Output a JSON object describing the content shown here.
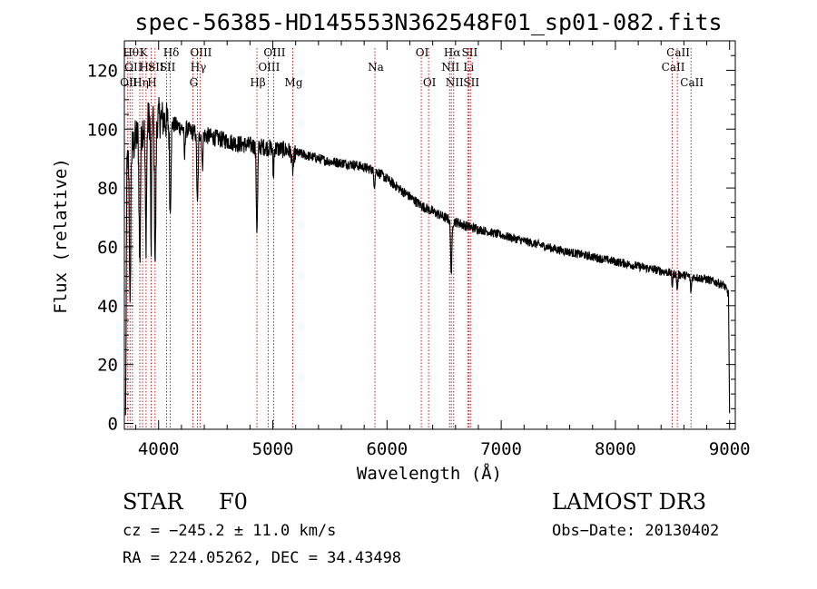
{
  "chart_data": {
    "type": "line",
    "title": "spec-56385-HD145553N362548F01_sp01-082.fits",
    "xlabel": "Wavelength (Å)",
    "ylabel": "Flux (relative)",
    "xlim": [
      3700,
      9050
    ],
    "ylim": [
      -2,
      130
    ],
    "xticks": [
      4000,
      5000,
      6000,
      7000,
      8000,
      9000
    ],
    "yticks": [
      0,
      20,
      40,
      60,
      80,
      100,
      120
    ],
    "continuum": [
      {
        "x": 3700,
        "y": 85
      },
      {
        "x": 3800,
        "y": 97
      },
      {
        "x": 3900,
        "y": 103
      },
      {
        "x": 4000,
        "y": 104
      },
      {
        "x": 4100,
        "y": 102
      },
      {
        "x": 4300,
        "y": 99
      },
      {
        "x": 4500,
        "y": 97
      },
      {
        "x": 4700,
        "y": 95
      },
      {
        "x": 4900,
        "y": 94
      },
      {
        "x": 5100,
        "y": 93
      },
      {
        "x": 5300,
        "y": 91
      },
      {
        "x": 5500,
        "y": 89
      },
      {
        "x": 5700,
        "y": 88
      },
      {
        "x": 5900,
        "y": 86
      },
      {
        "x": 6100,
        "y": 80
      },
      {
        "x": 6300,
        "y": 74
      },
      {
        "x": 6500,
        "y": 70
      },
      {
        "x": 6700,
        "y": 67
      },
      {
        "x": 7000,
        "y": 64
      },
      {
        "x": 7500,
        "y": 59
      },
      {
        "x": 8000,
        "y": 55
      },
      {
        "x": 8500,
        "y": 51
      },
      {
        "x": 8800,
        "y": 49
      },
      {
        "x": 8950,
        "y": 47
      },
      {
        "x": 8990,
        "y": 44
      },
      {
        "x": 9000,
        "y": 3
      }
    ],
    "absorption": [
      {
        "x": 3712,
        "depth": 80,
        "width": 4
      },
      {
        "x": 3750,
        "depth": 55,
        "width": 5
      },
      {
        "x": 3835,
        "depth": 45,
        "width": 6
      },
      {
        "x": 3889,
        "depth": 40,
        "width": 6
      },
      {
        "x": 3934,
        "depth": 45,
        "width": 4
      },
      {
        "x": 3970,
        "depth": 48,
        "width": 6
      },
      {
        "x": 4102,
        "depth": 30,
        "width": 6
      },
      {
        "x": 4227,
        "depth": 10,
        "width": 4
      },
      {
        "x": 4340,
        "depth": 25,
        "width": 6
      },
      {
        "x": 4383,
        "depth": 12,
        "width": 4
      },
      {
        "x": 4861,
        "depth": 28,
        "width": 6
      },
      {
        "x": 5005,
        "depth": 10,
        "width": 4
      },
      {
        "x": 5175,
        "depth": 6,
        "width": 8
      },
      {
        "x": 5890,
        "depth": 5,
        "width": 6
      },
      {
        "x": 6563,
        "depth": 18,
        "width": 6
      },
      {
        "x": 8498,
        "depth": 4,
        "width": 5
      },
      {
        "x": 8542,
        "depth": 5,
        "width": 5
      },
      {
        "x": 8662,
        "depth": 5,
        "width": 5
      }
    ],
    "line_markers": [
      {
        "x": 3730,
        "label": "OII",
        "row": 3
      },
      {
        "x": 3750,
        "label": "Hθ",
        "row": 1
      },
      {
        "x": 3770,
        "label": "OII",
        "row": 2
      },
      {
        "x": 3835,
        "label": "Hη",
        "row": 3
      },
      {
        "x": 3860,
        "label": "K",
        "row": 1
      },
      {
        "x": 3890,
        "label": "Hε",
        "row": 2
      },
      {
        "x": 3934,
        "label": "H",
        "row": 3
      },
      {
        "x": 3969,
        "label": "SII",
        "row": 2
      },
      {
        "x": 4070,
        "label": "SII",
        "row": 2
      },
      {
        "x": 4102,
        "label": "Hδ",
        "row": 1
      },
      {
        "x": 4300,
        "label": "G",
        "row": 3
      },
      {
        "x": 4340,
        "label": "Hγ",
        "row": 2
      },
      {
        "x": 4363,
        "label": "OIII",
        "row": 1
      },
      {
        "x": 4861,
        "label": "Hβ",
        "row": 3
      },
      {
        "x": 4959,
        "label": "OIII",
        "row": 2
      },
      {
        "x": 5007,
        "label": "OIII",
        "row": 1
      },
      {
        "x": 5175,
        "label": "Mg",
        "row": 3
      },
      {
        "x": 5894,
        "label": "Na",
        "row": 2
      },
      {
        "x": 6300,
        "label": "OI",
        "row": 1
      },
      {
        "x": 6364,
        "label": "OI",
        "row": 3
      },
      {
        "x": 6548,
        "label": "NII",
        "row": 2
      },
      {
        "x": 6563,
        "label": "Hα",
        "row": 1
      },
      {
        "x": 6584,
        "label": "NII",
        "row": 3
      },
      {
        "x": 6707,
        "label": "Li",
        "row": 2
      },
      {
        "x": 6716,
        "label": "SII",
        "row": 1
      },
      {
        "x": 6731,
        "label": "SII",
        "row": 3
      },
      {
        "x": 8498,
        "label": "CaII",
        "row": 2
      },
      {
        "x": 8542,
        "label": "CaII",
        "row": 1
      },
      {
        "x": 8662,
        "label": "CaII",
        "row": 3
      }
    ]
  },
  "info": {
    "object_class": "STAR",
    "subclass": "F0",
    "survey": "LAMOST DR3",
    "redshift": "cz = −245.2 ± 11.0 km/s",
    "obs_date": "Obs−Date: 20130402",
    "coords": "RA = 224.05262, DEC =  34.43498"
  },
  "colors": {
    "spectrum": "#000000",
    "marker": "#cc0000",
    "axis": "#000000"
  }
}
